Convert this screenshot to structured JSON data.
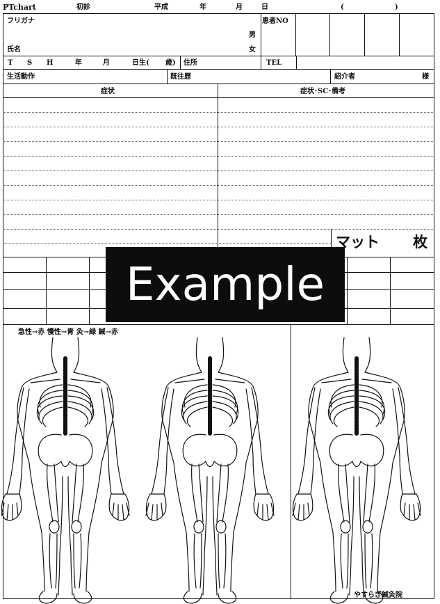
{
  "header": {
    "chart_label": "PTchart",
    "first_visit": "初診",
    "era": "平成",
    "year": "年",
    "month": "月",
    "day": "日",
    "paren_open": "(",
    "paren_close": ")"
  },
  "patient": {
    "furigana_label": "フリガナ",
    "name_label": "氏名",
    "male": "男",
    "female": "女",
    "patient_no_label": "患者NO",
    "era_options": [
      "T",
      "S",
      "H"
    ],
    "birth_year": "年",
    "birth_month": "月",
    "birthday_label": "日生(",
    "age_label": "歳)",
    "address_label": "住所",
    "tel_label": "TEL"
  },
  "history_row": {
    "daily_activity": "生活動作",
    "past_history": "既往歴",
    "referrer": "紹介者",
    "honorific": "様"
  },
  "sections": {
    "symptoms": "症状",
    "symptoms_sc_notes": "症状･SC･備考",
    "mat": "マット",
    "sheets": "枚"
  },
  "overlay": {
    "text": "Example"
  },
  "legend": {
    "text": "急性→赤 慢性→青 灸→緑 鍼→赤"
  },
  "clinic": {
    "name": "やすらぎ鍼灸院"
  }
}
